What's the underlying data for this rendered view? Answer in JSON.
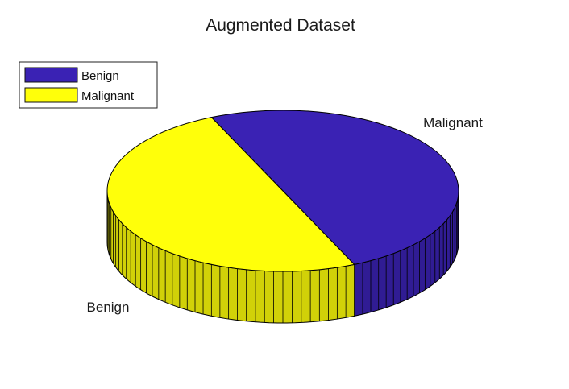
{
  "chart_data": {
    "type": "pie",
    "style": "3d",
    "title": "Augmented Dataset",
    "slices": [
      {
        "label": "Benign",
        "value": 0.5,
        "color": "#3a22b4"
      },
      {
        "label": "Malignant",
        "value": 0.5,
        "color": "#ffff0a"
      }
    ],
    "legend": {
      "placement": "top-left",
      "entries": [
        "Benign",
        "Malignant"
      ]
    }
  }
}
